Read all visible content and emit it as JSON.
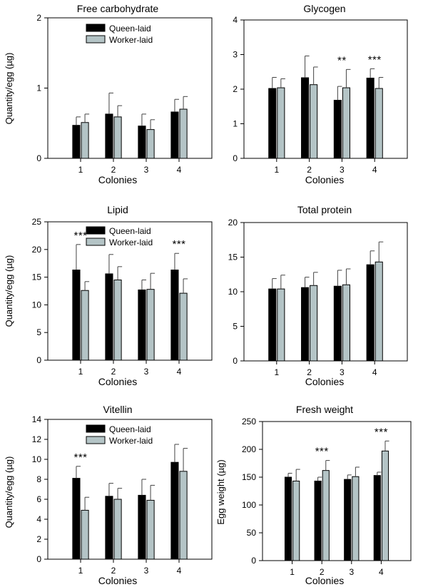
{
  "colors": {
    "queen": "#000000",
    "worker": "#b4c4c6",
    "edge": "#000000"
  },
  "legend_labels": [
    "Queen-laid",
    "Worker-laid"
  ],
  "chart_data": [
    {
      "type": "bar",
      "id": "free-carbohydrate",
      "title": "Free carbohydrate",
      "xlabel": "Colonies",
      "ylabel": "Quantity/egg (µg)",
      "categories": [
        "1",
        "2",
        "3",
        "4"
      ],
      "ylim": [
        0,
        2
      ],
      "yticks": [
        "0",
        "1",
        "2"
      ],
      "legend": true,
      "legend_placement": "top-center",
      "series": [
        {
          "name": "Queen-laid",
          "values": [
            0.47,
            0.63,
            0.46,
            0.66
          ],
          "errors": [
            0.12,
            0.3,
            0.17,
            0.18
          ]
        },
        {
          "name": "Worker-laid",
          "values": [
            0.51,
            0.59,
            0.41,
            0.7
          ],
          "errors": [
            0.12,
            0.16,
            0.14,
            0.18
          ]
        }
      ],
      "significance": [
        "",
        "",
        "",
        ""
      ]
    },
    {
      "type": "bar",
      "id": "glycogen",
      "title": "Glycogen",
      "xlabel": "Colonies",
      "ylabel": "",
      "categories": [
        "1",
        "2",
        "3",
        "4"
      ],
      "ylim": [
        0,
        4
      ],
      "yticks": [
        "0",
        "1",
        "2",
        "3",
        "4"
      ],
      "legend": false,
      "series": [
        {
          "name": "Queen-laid",
          "values": [
            2.02,
            2.33,
            1.68,
            2.32
          ],
          "errors": [
            0.32,
            0.63,
            0.4,
            0.27
          ]
        },
        {
          "name": "Worker-laid",
          "values": [
            2.04,
            2.13,
            2.04,
            2.02
          ],
          "errors": [
            0.26,
            0.51,
            0.53,
            0.32
          ]
        }
      ],
      "significance": [
        "",
        "",
        "**",
        "***"
      ]
    },
    {
      "type": "bar",
      "id": "lipid",
      "title": "Lipid",
      "xlabel": "Colonies",
      "ylabel": "Quantity/egg (µg)",
      "categories": [
        "1",
        "2",
        "3",
        "4"
      ],
      "ylim": [
        0,
        25
      ],
      "yticks": [
        "0",
        "5",
        "10",
        "15",
        "20",
        "25"
      ],
      "legend": true,
      "legend_placement": "top-center",
      "series": [
        {
          "name": "Queen-laid",
          "values": [
            16.3,
            15.6,
            12.7,
            16.3
          ],
          "errors": [
            4.6,
            3.5,
            1.8,
            3.0
          ]
        },
        {
          "name": "Worker-laid",
          "values": [
            12.6,
            14.5,
            12.8,
            12.1
          ],
          "errors": [
            1.6,
            2.4,
            2.9,
            2.6
          ]
        }
      ],
      "significance": [
        "***",
        "",
        "",
        "***"
      ]
    },
    {
      "type": "bar",
      "id": "total-protein",
      "title": "Total protein",
      "xlabel": "Colonies",
      "ylabel": "",
      "categories": [
        "1",
        "2",
        "3",
        "4"
      ],
      "ylim": [
        0,
        20
      ],
      "yticks": [
        "0",
        "5",
        "10",
        "15",
        "20"
      ],
      "legend": false,
      "series": [
        {
          "name": "Queen-laid",
          "values": [
            10.4,
            10.6,
            10.8,
            13.9
          ],
          "errors": [
            1.5,
            1.5,
            2.3,
            2.0
          ]
        },
        {
          "name": "Worker-laid",
          "values": [
            10.4,
            10.9,
            11.0,
            14.3
          ],
          "errors": [
            2.0,
            1.9,
            2.3,
            2.9
          ]
        }
      ],
      "significance": [
        "",
        "",
        "",
        ""
      ]
    },
    {
      "type": "bar",
      "id": "vitellin",
      "title": "Vitellin",
      "xlabel": "Colonies",
      "ylabel": "Quantity/egg (µg)",
      "categories": [
        "1",
        "2",
        "3",
        "4"
      ],
      "ylim": [
        0,
        14
      ],
      "yticks": [
        "0",
        "2",
        "4",
        "6",
        "8",
        "10",
        "12",
        "14"
      ],
      "legend": true,
      "legend_placement": "top-center",
      "series": [
        {
          "name": "Queen-laid",
          "values": [
            8.1,
            6.3,
            6.4,
            9.7
          ],
          "errors": [
            1.2,
            1.3,
            1.6,
            1.8
          ]
        },
        {
          "name": "Worker-laid",
          "values": [
            4.9,
            6.0,
            5.9,
            8.8
          ],
          "errors": [
            1.3,
            1.1,
            1.5,
            2.3
          ]
        }
      ],
      "significance": [
        "***",
        "",
        "",
        ""
      ]
    },
    {
      "type": "bar",
      "id": "fresh-weight",
      "title": "Fresh weight",
      "xlabel": "Colonies",
      "ylabel": "Egg weight (µg)",
      "categories": [
        "1",
        "2",
        "3",
        "4"
      ],
      "ylim": [
        0,
        250
      ],
      "yticks": [
        "0",
        "50",
        "100",
        "150",
        "200",
        "250"
      ],
      "legend": false,
      "series": [
        {
          "name": "Queen-laid",
          "values": [
            150,
            143,
            146,
            153
          ],
          "errors": [
            7,
            7,
            8,
            6
          ]
        },
        {
          "name": "Worker-laid",
          "values": [
            143,
            162,
            151,
            197
          ],
          "errors": [
            21,
            18,
            17,
            18
          ]
        }
      ],
      "significance": [
        "",
        "***",
        "",
        "***"
      ]
    }
  ]
}
